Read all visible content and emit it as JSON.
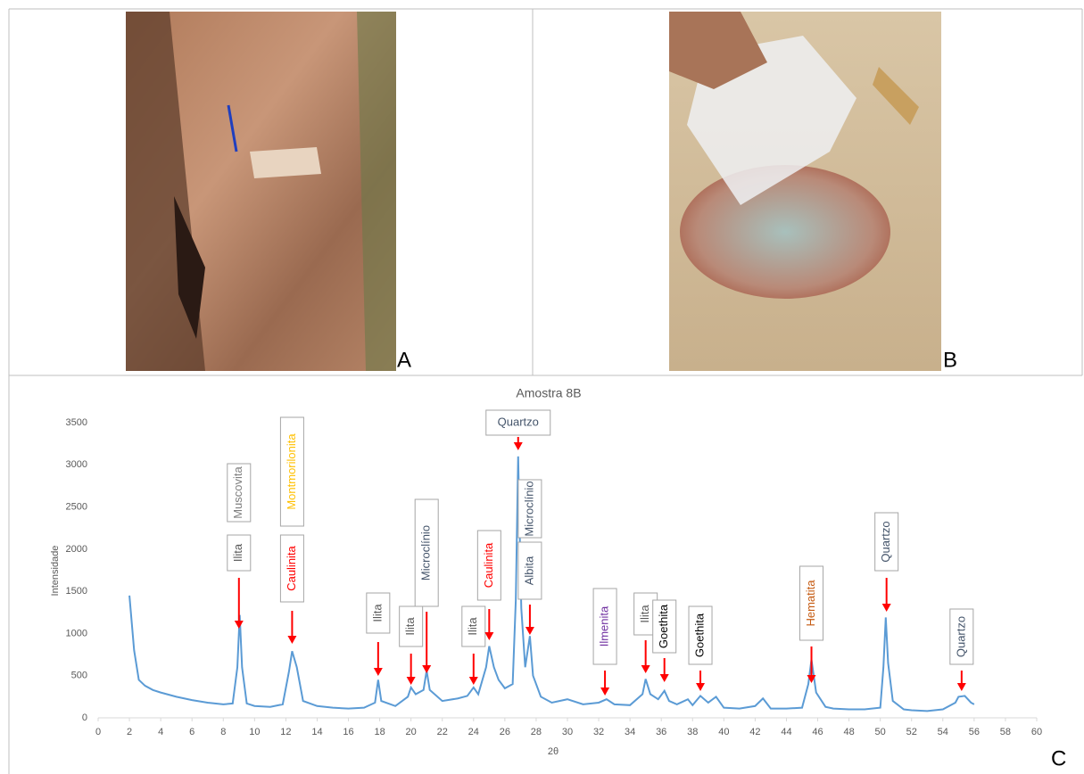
{
  "figure": {
    "panels": [
      "A",
      "B",
      "C"
    ]
  },
  "chart_data": {
    "type": "line",
    "title": "Amostra 8B",
    "x_label": "2θ",
    "y_label": "Intensidade",
    "xlim": [
      0,
      60
    ],
    "ylim": [
      0,
      3500
    ],
    "xticks": [
      0,
      2,
      4,
      6,
      8,
      10,
      12,
      14,
      16,
      18,
      20,
      22,
      24,
      26,
      28,
      30,
      32,
      34,
      36,
      38,
      40,
      42,
      44,
      46,
      48,
      50,
      52,
      54,
      56,
      58,
      60
    ],
    "yticks": [
      0,
      500,
      1000,
      1500,
      2000,
      2500,
      3000,
      3500
    ],
    "grid": false,
    "series": [
      {
        "color": "#5b9bd5",
        "x": [
          2,
          2.3,
          2.6,
          3,
          3.5,
          4,
          5,
          6,
          7,
          8,
          8.6,
          8.9,
          9.05,
          9.2,
          9.5,
          10,
          11,
          11.8,
          12.2,
          12.4,
          12.7,
          13.1,
          14,
          15,
          16,
          17,
          17.7,
          17.9,
          18.1,
          19,
          19.8,
          20,
          20.3,
          20.8,
          21,
          21.2,
          22,
          23,
          23.6,
          24,
          24.3,
          24.8,
          25,
          25.3,
          25.6,
          26,
          26.5,
          26.7,
          26.85,
          27.05,
          27.3,
          27.6,
          27.8,
          28.3,
          29,
          30,
          31,
          32,
          32.5,
          33,
          34,
          34.8,
          35,
          35.3,
          35.8,
          36.2,
          36.5,
          37,
          37.7,
          38,
          38.5,
          39,
          39.5,
          40,
          41,
          42,
          42.5,
          43,
          44,
          45,
          45.4,
          45.6,
          45.9,
          46.5,
          47,
          48,
          49,
          50,
          50.2,
          50.35,
          50.5,
          50.8,
          51.5,
          52,
          53,
          54,
          54.8,
          55,
          55.4,
          55.8,
          56
        ],
        "values": [
          1450,
          800,
          450,
          380,
          330,
          300,
          250,
          210,
          180,
          160,
          170,
          600,
          1220,
          600,
          170,
          140,
          130,
          160,
          550,
          790,
          600,
          200,
          140,
          120,
          110,
          120,
          180,
          450,
          200,
          140,
          250,
          360,
          280,
          330,
          560,
          330,
          200,
          230,
          260,
          360,
          280,
          600,
          850,
          600,
          450,
          350,
          400,
          1400,
          3100,
          1300,
          600,
          970,
          500,
          250,
          180,
          220,
          160,
          180,
          220,
          160,
          150,
          280,
          460,
          280,
          220,
          320,
          200,
          160,
          220,
          150,
          260,
          180,
          250,
          120,
          110,
          140,
          230,
          110,
          110,
          120,
          400,
          690,
          300,
          130,
          110,
          100,
          100,
          120,
          600,
          1190,
          650,
          200,
          100,
          90,
          80,
          100,
          180,
          250,
          260,
          180,
          160
        ]
      }
    ],
    "annotations": [
      {
        "x": 9,
        "labels": [
          {
            "text": "Muscovita",
            "color": "#7f7f7f"
          },
          {
            "text": "Ilita",
            "color": "#595959"
          }
        ]
      },
      {
        "x": 12.4,
        "labels": [
          {
            "text": "Montmorilonita",
            "color": "#ffc000"
          },
          {
            "text": "Caulinita",
            "color": "#ff0000"
          }
        ]
      },
      {
        "x": 17.9,
        "labels": [
          {
            "text": "Ilita",
            "color": "#595959"
          }
        ]
      },
      {
        "x": 20,
        "labels": [
          {
            "text": "Ilita",
            "color": "#595959"
          }
        ]
      },
      {
        "x": 21,
        "labels": [
          {
            "text": "Microclínio",
            "color": "#44546a"
          }
        ]
      },
      {
        "x": 24,
        "labels": [
          {
            "text": "Ilita",
            "color": "#595959"
          }
        ]
      },
      {
        "x": 25,
        "labels": [
          {
            "text": "Caulinita",
            "color": "#ff0000"
          }
        ]
      },
      {
        "x": 26.85,
        "labels": [
          {
            "text": "Quartzo",
            "color": "#44546a"
          }
        ]
      },
      {
        "x": 27.6,
        "labels": [
          {
            "text": "Microclínio",
            "color": "#44546a"
          },
          {
            "text": "Albita",
            "color": "#44546a"
          }
        ]
      },
      {
        "x": 32.4,
        "labels": [
          {
            "text": "Ilmenita",
            "color": "#7030a0"
          }
        ]
      },
      {
        "x": 35,
        "labels": [
          {
            "text": "Ilita",
            "color": "#595959"
          }
        ]
      },
      {
        "x": 36.2,
        "labels": [
          {
            "text": "Goethita",
            "color": "#000000"
          }
        ]
      },
      {
        "x": 38.5,
        "labels": [
          {
            "text": "Goethita",
            "color": "#000000"
          }
        ]
      },
      {
        "x": 45.6,
        "labels": [
          {
            "text": "Hematita",
            "color": "#c55a11"
          }
        ]
      },
      {
        "x": 50.4,
        "labels": [
          {
            "text": "Quartzo",
            "color": "#44546a"
          }
        ]
      },
      {
        "x": 55.2,
        "labels": [
          {
            "text": "Quartzo",
            "color": "#44546a"
          }
        ]
      }
    ]
  }
}
